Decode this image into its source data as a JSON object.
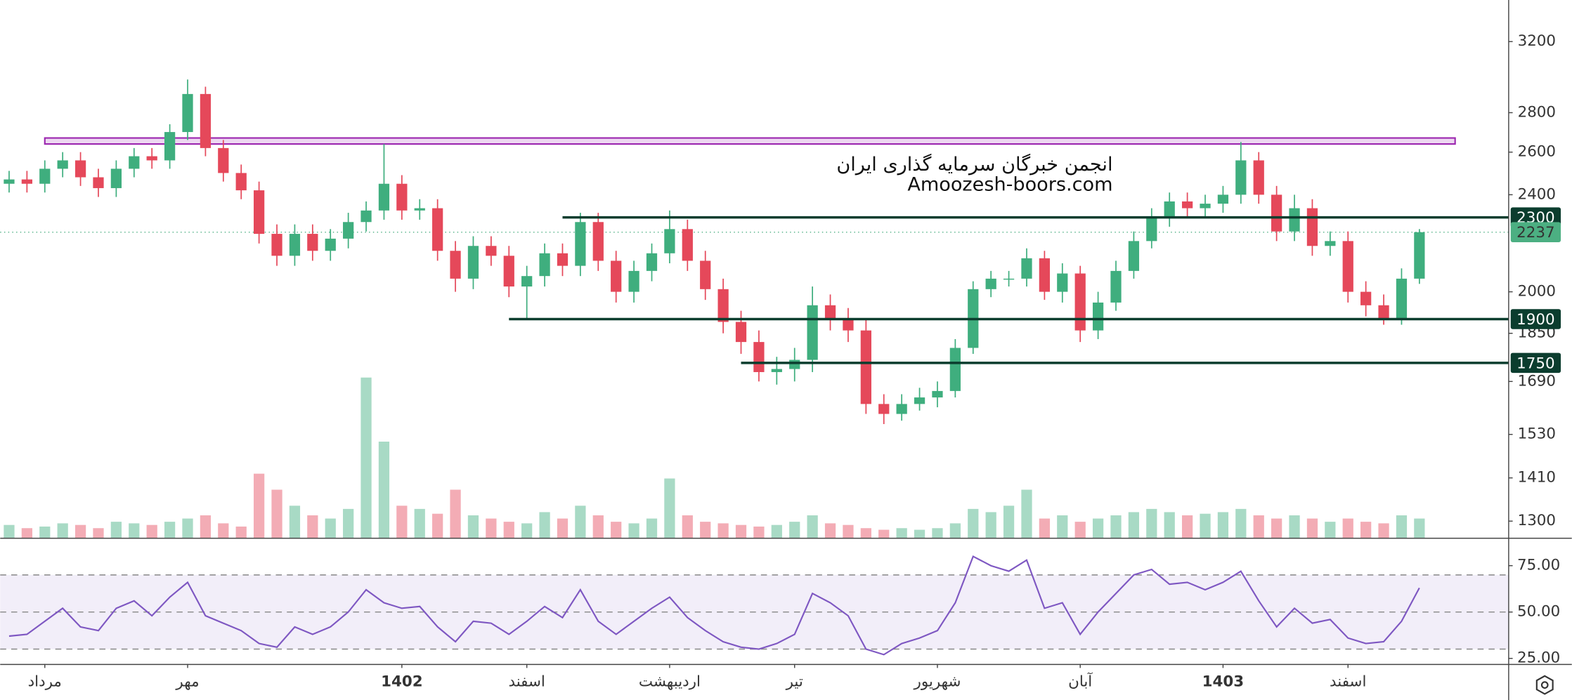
{
  "chart_data": {
    "type": "candlestick",
    "watermark": [
      "انجمن خبرگان سرمایه گذاری ایران",
      "Amoozesh-boors.com"
    ],
    "open": [
      2450,
      2470,
      2450,
      2520,
      2560,
      2480,
      2430,
      2520,
      2580,
      2560,
      2700,
      2900,
      2620,
      2500,
      2420,
      2230,
      2140,
      2230,
      2160,
      2210,
      2280,
      2330,
      2450,
      2330,
      2340,
      2160,
      2050,
      2180,
      2140,
      2020,
      2060,
      2150,
      2100,
      2280,
      2120,
      2000,
      2080,
      2150,
      2250,
      2120,
      2010,
      1890,
      1820,
      1720,
      1730,
      1760,
      1950,
      1900,
      1860,
      1620,
      1590,
      1620,
      1640,
      1660,
      1800,
      2010,
      2050,
      2050,
      2130,
      2000,
      2070,
      1860,
      1960,
      2080,
      2200,
      2300,
      2370,
      2340,
      2360,
      2400,
      2560,
      2400,
      2240,
      2340,
      2180,
      2200,
      2000,
      1950,
      1900,
      2050
    ],
    "high": [
      2510,
      2510,
      2560,
      2600,
      2600,
      2520,
      2560,
      2620,
      2620,
      2740,
      2980,
      2940,
      2660,
      2540,
      2460,
      2270,
      2270,
      2270,
      2250,
      2320,
      2370,
      2640,
      2490,
      2380,
      2380,
      2200,
      2220,
      2220,
      2180,
      2100,
      2190,
      2190,
      2320,
      2320,
      2160,
      2120,
      2190,
      2330,
      2290,
      2160,
      2050,
      1930,
      1860,
      1770,
      1800,
      2020,
      1990,
      1940,
      1900,
      1650,
      1650,
      1670,
      1690,
      1830,
      2040,
      2080,
      2080,
      2170,
      2160,
      2110,
      2100,
      2000,
      2120,
      2240,
      2340,
      2410,
      2410,
      2400,
      2440,
      2650,
      2600,
      2440,
      2400,
      2380,
      2240,
      2240,
      2040,
      1990,
      2090,
      2250
    ],
    "low": [
      2410,
      2410,
      2410,
      2480,
      2440,
      2390,
      2390,
      2480,
      2520,
      2520,
      2660,
      2580,
      2460,
      2380,
      2190,
      2100,
      2100,
      2120,
      2120,
      2170,
      2240,
      2290,
      2290,
      2290,
      2120,
      2000,
      2010,
      2100,
      1980,
      1900,
      2020,
      2060,
      2060,
      2080,
      1960,
      1960,
      2040,
      2110,
      2080,
      1970,
      1850,
      1780,
      1690,
      1680,
      1690,
      1720,
      1860,
      1820,
      1590,
      1560,
      1570,
      1600,
      1610,
      1640,
      1780,
      1980,
      2020,
      2020,
      1970,
      1960,
      1820,
      1830,
      1930,
      2050,
      2170,
      2260,
      2300,
      2300,
      2320,
      2360,
      2360,
      2200,
      2200,
      2140,
      2140,
      1960,
      1910,
      1880,
      1880,
      2030
    ],
    "close": [
      2470,
      2450,
      2520,
      2560,
      2480,
      2430,
      2520,
      2580,
      2560,
      2700,
      2900,
      2620,
      2500,
      2420,
      2230,
      2140,
      2230,
      2160,
      2210,
      2280,
      2330,
      2450,
      2330,
      2340,
      2160,
      2050,
      2180,
      2140,
      2020,
      2060,
      2150,
      2100,
      2280,
      2120,
      2000,
      2080,
      2150,
      2250,
      2120,
      2010,
      1890,
      1820,
      1720,
      1730,
      1760,
      1950,
      1900,
      1860,
      1620,
      1590,
      1620,
      1640,
      1660,
      1800,
      2010,
      2050,
      2050,
      2130,
      2000,
      2070,
      1860,
      1960,
      2080,
      2200,
      2300,
      2370,
      2340,
      2360,
      2400,
      2560,
      2400,
      2240,
      2340,
      2180,
      2200,
      2000,
      1950,
      1900,
      2050,
      2237
    ],
    "volume": [
      8,
      6,
      7,
      9,
      8,
      6,
      10,
      9,
      8,
      10,
      12,
      14,
      9,
      7,
      40,
      30,
      20,
      14,
      12,
      18,
      100,
      60,
      20,
      18,
      15,
      30,
      14,
      12,
      10,
      9,
      16,
      12,
      20,
      14,
      10,
      9,
      12,
      37,
      14,
      10,
      9,
      8,
      7,
      8,
      10,
      14,
      9,
      8,
      6,
      5,
      6,
      5,
      6,
      9,
      18,
      16,
      20,
      30,
      12,
      14,
      10,
      12,
      14,
      16,
      18,
      16,
      14,
      15,
      16,
      18,
      14,
      12,
      14,
      12,
      10,
      12,
      10,
      9,
      14,
      12
    ],
    "up_color": "#3fae7e",
    "down_color": "#e5485a",
    "log_scale": true,
    "ylim": [
      1260,
      3460
    ],
    "yticks": [
      3200,
      2800,
      2600,
      2400,
      2000,
      1850,
      1690,
      1530,
      1410,
      1300
    ],
    "xlim": [
      -0.5,
      84
    ],
    "xticks": [
      {
        "value": 2,
        "label": "مرداد"
      },
      {
        "value": 10,
        "label": "مهر"
      },
      {
        "value": 22,
        "label": "1402"
      },
      {
        "value": 29,
        "label": "اسفند"
      },
      {
        "value": 37,
        "label": "اردیبهشت"
      },
      {
        "value": 44,
        "label": "تیر"
      },
      {
        "value": 52,
        "label": "شهریور"
      },
      {
        "value": 60,
        "label": "آبان"
      },
      {
        "value": 68,
        "label": "1403"
      },
      {
        "value": 75,
        "label": "اسفند"
      }
    ],
    "levels": [
      {
        "value": 2300,
        "from": 31,
        "color": "#0b3d2e"
      },
      {
        "value": 1900,
        "from": 28,
        "color": "#0b3d2e"
      },
      {
        "value": 1750,
        "from": 41,
        "color": "#0b3d2e"
      }
    ],
    "zones": [
      {
        "from": 2,
        "to": 81,
        "low": 2640,
        "high": 2670,
        "color": "#9c27b0"
      }
    ],
    "last_price": {
      "value": 2237,
      "color": "#4caf82"
    },
    "rsi": {
      "type": "line",
      "color": "#7e57c2",
      "values": [
        37,
        38,
        45,
        52,
        42,
        40,
        52,
        56,
        48,
        58,
        66,
        48,
        44,
        40,
        33,
        31,
        42,
        38,
        42,
        50,
        62,
        55,
        52,
        53,
        42,
        34,
        45,
        44,
        38,
        45,
        53,
        47,
        62,
        45,
        38,
        45,
        52,
        58,
        47,
        40,
        34,
        31,
        30,
        33,
        38,
        60,
        55,
        48,
        30,
        27,
        33,
        36,
        40,
        55,
        80,
        75,
        72,
        78,
        52,
        55,
        38,
        50,
        60,
        70,
        73,
        65,
        66,
        62,
        66,
        72,
        56,
        42,
        52,
        44,
        46,
        36,
        33,
        34,
        45,
        63
      ],
      "ylim": [
        22,
        89.5
      ],
      "yticks": [
        {
          "value": 75,
          "label": "75.00"
        },
        {
          "value": 50,
          "label": "50.00"
        },
        {
          "value": 25,
          "label": "25.00"
        }
      ],
      "levels": [
        30,
        50,
        70
      ]
    }
  }
}
